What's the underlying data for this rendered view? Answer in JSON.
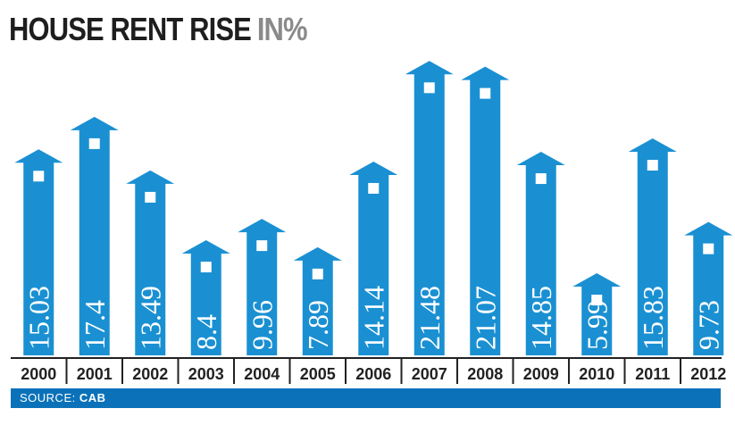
{
  "title": {
    "main": "HOUSE RENT RISE",
    "unit": "IN%"
  },
  "source": {
    "label": "SOURCE:",
    "value": "CAB"
  },
  "colors": {
    "bar": "#1a90d2",
    "text": "#ffffff",
    "axis": "#222222",
    "source_bar": "#0b72b9"
  },
  "chart_data": {
    "type": "bar",
    "categories": [
      "2000",
      "2001",
      "2002",
      "2003",
      "2004",
      "2005",
      "2006",
      "2007",
      "2008",
      "2009",
      "2010",
      "2011",
      "2012"
    ],
    "values": [
      15.03,
      17.4,
      13.49,
      8.4,
      9.96,
      7.89,
      14.14,
      21.48,
      21.07,
      14.85,
      5.99,
      15.83,
      9.73
    ],
    "labels": [
      "15.03",
      "17.4",
      "13.49",
      "8.4",
      "9.96",
      "7.89",
      "14.14",
      "21.48",
      "21.07",
      "14.85",
      "5.99",
      "15.83",
      "9.73"
    ],
    "title": "HOUSE RENT RISE IN%",
    "xlabel": "",
    "ylabel": "",
    "ylim": [
      0,
      22
    ],
    "grid": false,
    "legend": "none",
    "bar_shape": "house-arrow"
  }
}
